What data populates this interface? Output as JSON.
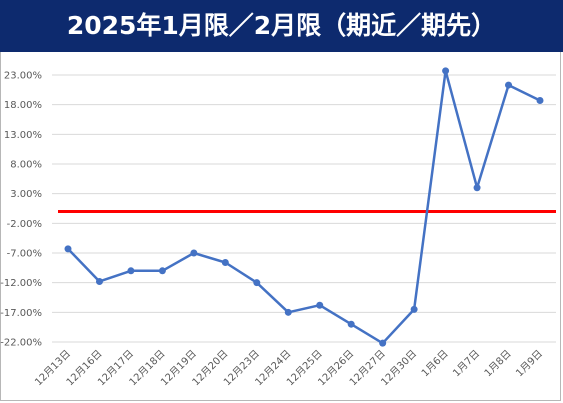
{
  "title": "2025年1月限／2月限（期近／期先）",
  "chart_data": {
    "type": "line",
    "title": "2025年1月限／2月限（期近／期先）",
    "xlabel": "",
    "ylabel": "",
    "categories": [
      "12月13日",
      "12月16日",
      "12月17日",
      "12月18日",
      "12月19日",
      "12月20日",
      "12月23日",
      "12月24日",
      "12月25日",
      "12月26日",
      "12月27日",
      "12月30日",
      "1月6日",
      "1月7日",
      "1月8日",
      "1月9日"
    ],
    "series": [
      {
        "values": [
          -6.3,
          -11.8,
          -10.0,
          -10.0,
          -7.0,
          -8.6,
          -12.0,
          -17.0,
          -15.8,
          -19.0,
          -22.2,
          -16.5,
          23.7,
          4.0,
          21.3,
          18.7
        ]
      }
    ],
    "reference_line": {
      "value": 0.0,
      "color": "#ff0000"
    },
    "line_color": "#4472c4",
    "y_ticks": [
      "23.00%",
      "18.00%",
      "13.00%",
      "8.00%",
      "3.00%",
      "-2.00%",
      "-7.00%",
      "-12.00%",
      "-17.00%",
      "-22.00%"
    ],
    "y_tick_values": [
      23,
      18,
      13,
      8,
      3,
      -2,
      -7,
      -12,
      -17,
      -22
    ],
    "ylim": [
      -22,
      23
    ],
    "grid": true,
    "legend": "none"
  }
}
